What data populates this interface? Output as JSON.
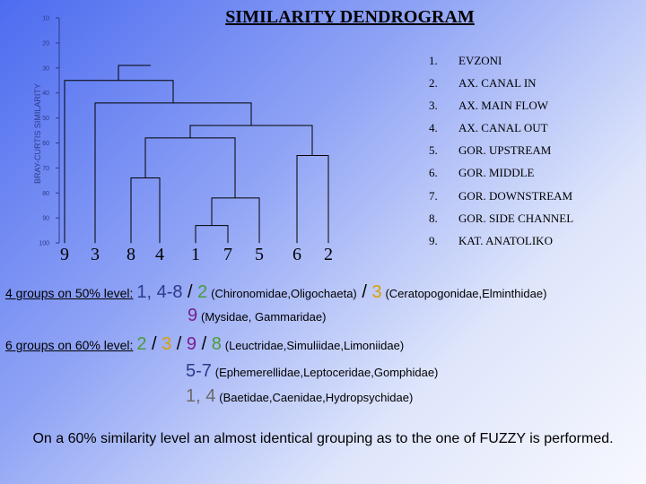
{
  "title": "SIMILARITY DENDROGRAM",
  "dendrogram": {
    "axis_label": "BRAY-CURTIS SIMILARITY",
    "ticks": [
      "10",
      "20",
      "30",
      "40",
      "50",
      "60",
      "70",
      "80",
      "90",
      "100"
    ],
    "leaves": [
      "9",
      "3",
      "8",
      "4",
      "1",
      "7",
      "5",
      "6",
      "2"
    ],
    "merges": [
      {
        "a": "1",
        "b": "7",
        "similarity": 93
      },
      {
        "a": "1-7",
        "b": "5",
        "similarity": 82
      },
      {
        "a": "8",
        "b": "4",
        "similarity": 74
      },
      {
        "a": "8-4",
        "b": "1-7-5",
        "similarity": 58
      },
      {
        "a": "6",
        "b": "2",
        "similarity": 65
      },
      {
        "a": "4-8 group",
        "b": "6-2",
        "similarity": 53
      },
      {
        "a": "3",
        "b": "4-8 + 6-2",
        "similarity": 44
      },
      {
        "a": "9",
        "b": "rest",
        "similarity": 35
      }
    ]
  },
  "legend": [
    {
      "num": "1.",
      "label": "EVZONI"
    },
    {
      "num": "2.",
      "label": "AX. CANAL IN"
    },
    {
      "num": "3.",
      "label": "AX. MAIN FLOW"
    },
    {
      "num": "4.",
      "label": "AX. CANAL OUT"
    },
    {
      "num": "5.",
      "label": "GOR. UPSTREAM"
    },
    {
      "num": "6.",
      "label": "GOR. MIDDLE"
    },
    {
      "num": "7.",
      "label": "GOR. DOWNSTREAM"
    },
    {
      "num": "8.",
      "label": "GOR. SIDE CHANNEL"
    },
    {
      "num": "9.",
      "label": "KAT. ANATOLIKO"
    }
  ],
  "groups4": {
    "heading": "4 groups on 50% level:",
    "g1": "1, 4-8",
    "sep1": " / ",
    "g2": "2",
    "taxa2": "(Chironomidae,Oligochaeta)",
    "sep2": " / ",
    "g3": "3",
    "taxa3": "(Ceratopogonidae,Elminthidae)",
    "g4": "9",
    "taxa4": "(Mysidae, Gammaridae)"
  },
  "groups6": {
    "heading": "6 groups on 60% level:",
    "a": "2",
    "s1": " / ",
    "b": "3",
    "s2": " / ",
    "c": "9",
    "s3": " / ",
    "d": "8",
    "taxa_a": "(Leuctridae,Simuliidae,Limoniidae)",
    "e": "5-7",
    "taxa_e": "(Ephemerellidae,Leptoceridae,Gomphidae)",
    "f": "1, 4",
    "taxa_f": "(Baetidae,Caenidae,Hydropsychidae)"
  },
  "footer": "On a 60% similarity level an almost identical grouping as to the one of FUZZY is performed.",
  "colors": {
    "text": "#000000",
    "green": "#4a9a3a",
    "orange": "#d9a000",
    "purple": "#7a1f8a",
    "grey": "#6a6a6a",
    "blue": "#2d3a8c"
  }
}
